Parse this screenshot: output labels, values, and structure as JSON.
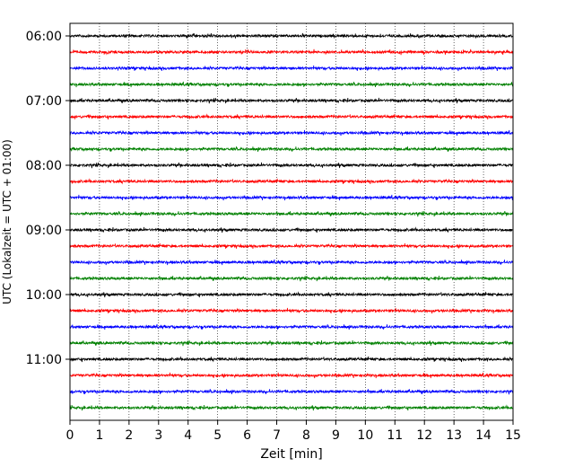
{
  "chart_data": {
    "type": "line",
    "description_note": "",
    "xlabel": "Zeit  [min]",
    "ylabel": "UTC (Lokalzeit = UTC + 01:00)",
    "xlim": [
      0,
      15
    ],
    "x_ticks": [
      0,
      1,
      2,
      3,
      4,
      5,
      6,
      7,
      8,
      9,
      10,
      11,
      12,
      13,
      14,
      15
    ],
    "x_tick_labels": [
      "0",
      "1",
      "2",
      "3",
      "4",
      "5",
      "6",
      "7",
      "8",
      "9",
      "10",
      "11",
      "12",
      "13",
      "14",
      "15"
    ],
    "y_ticks": [
      {
        "label": "06:00",
        "row": 0
      },
      {
        "label": "07:00",
        "row": 4
      },
      {
        "label": "08:00",
        "row": 8
      },
      {
        "label": "09:00",
        "row": 12
      },
      {
        "label": "10:00",
        "row": 16
      },
      {
        "label": "11:00",
        "row": 20
      }
    ],
    "rows": 24,
    "trace_minutes_per_row": 15,
    "color_cycle": [
      "#000000",
      "#ff0000",
      "#0000ff",
      "#008000"
    ],
    "vertical_grid": "dotted"
  }
}
